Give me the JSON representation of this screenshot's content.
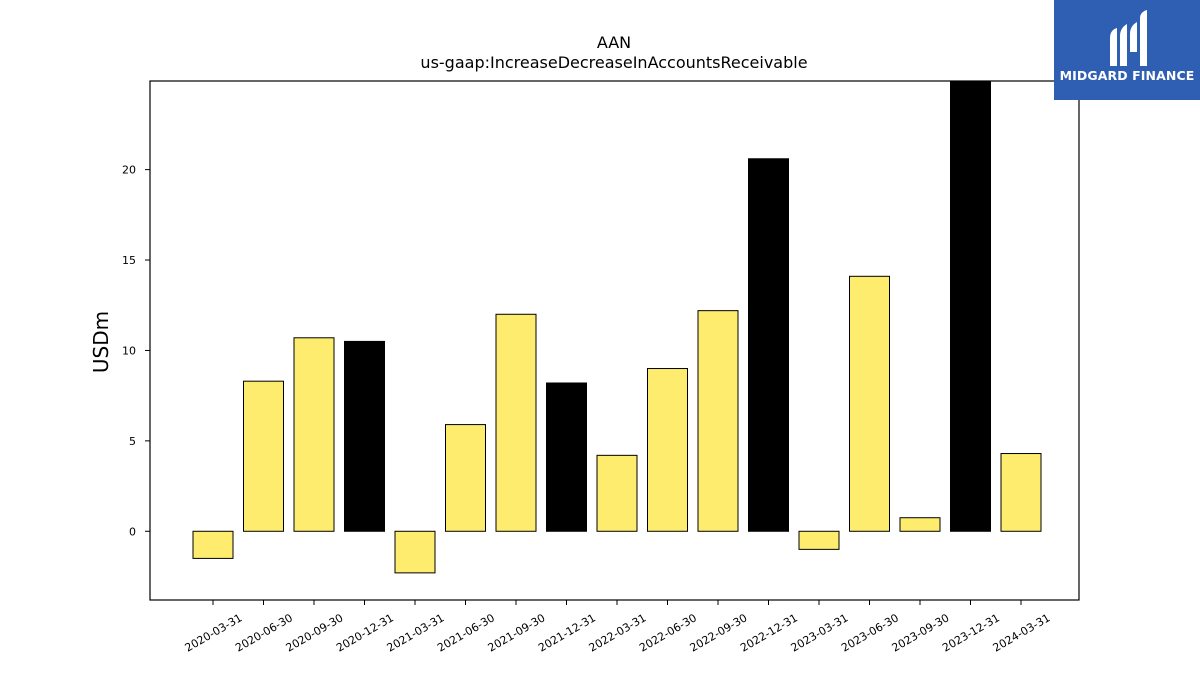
{
  "chart_data": {
    "type": "bar",
    "title": "AAN",
    "subtitle": "us-gaap:IncreaseDecreaseInAccountsReceivable",
    "xlabel": "",
    "ylabel": "USDm",
    "ylim": [
      -3.8,
      24.9
    ],
    "yticks": [
      0,
      5,
      10,
      15,
      20
    ],
    "grid": false,
    "categories": [
      "2020-03-31",
      "2020-06-30",
      "2020-09-30",
      "2020-12-31",
      "2021-03-31",
      "2021-06-30",
      "2021-09-30",
      "2021-12-31",
      "2022-03-31",
      "2022-06-30",
      "2022-09-30",
      "2022-12-31",
      "2023-03-31",
      "2023-06-30",
      "2023-09-30",
      "2023-12-31",
      "2024-03-31"
    ],
    "values": [
      -1.5,
      8.3,
      10.7,
      10.5,
      -2.3,
      5.9,
      12.0,
      8.2,
      4.2,
      9.0,
      12.2,
      20.6,
      -1.0,
      14.1,
      0.75,
      24.9,
      4.3
    ],
    "bar_colors": [
      "#feec6f",
      "#feec6f",
      "#feec6f",
      "#000000",
      "#feec6f",
      "#feec6f",
      "#feec6f",
      "#000000",
      "#feec6f",
      "#feec6f",
      "#feec6f",
      "#000000",
      "#feec6f",
      "#feec6f",
      "#feec6f",
      "#000000",
      "#feec6f"
    ]
  },
  "logo": {
    "text": "MIDGARD FINANCE",
    "color": "#2f5fb3"
  }
}
